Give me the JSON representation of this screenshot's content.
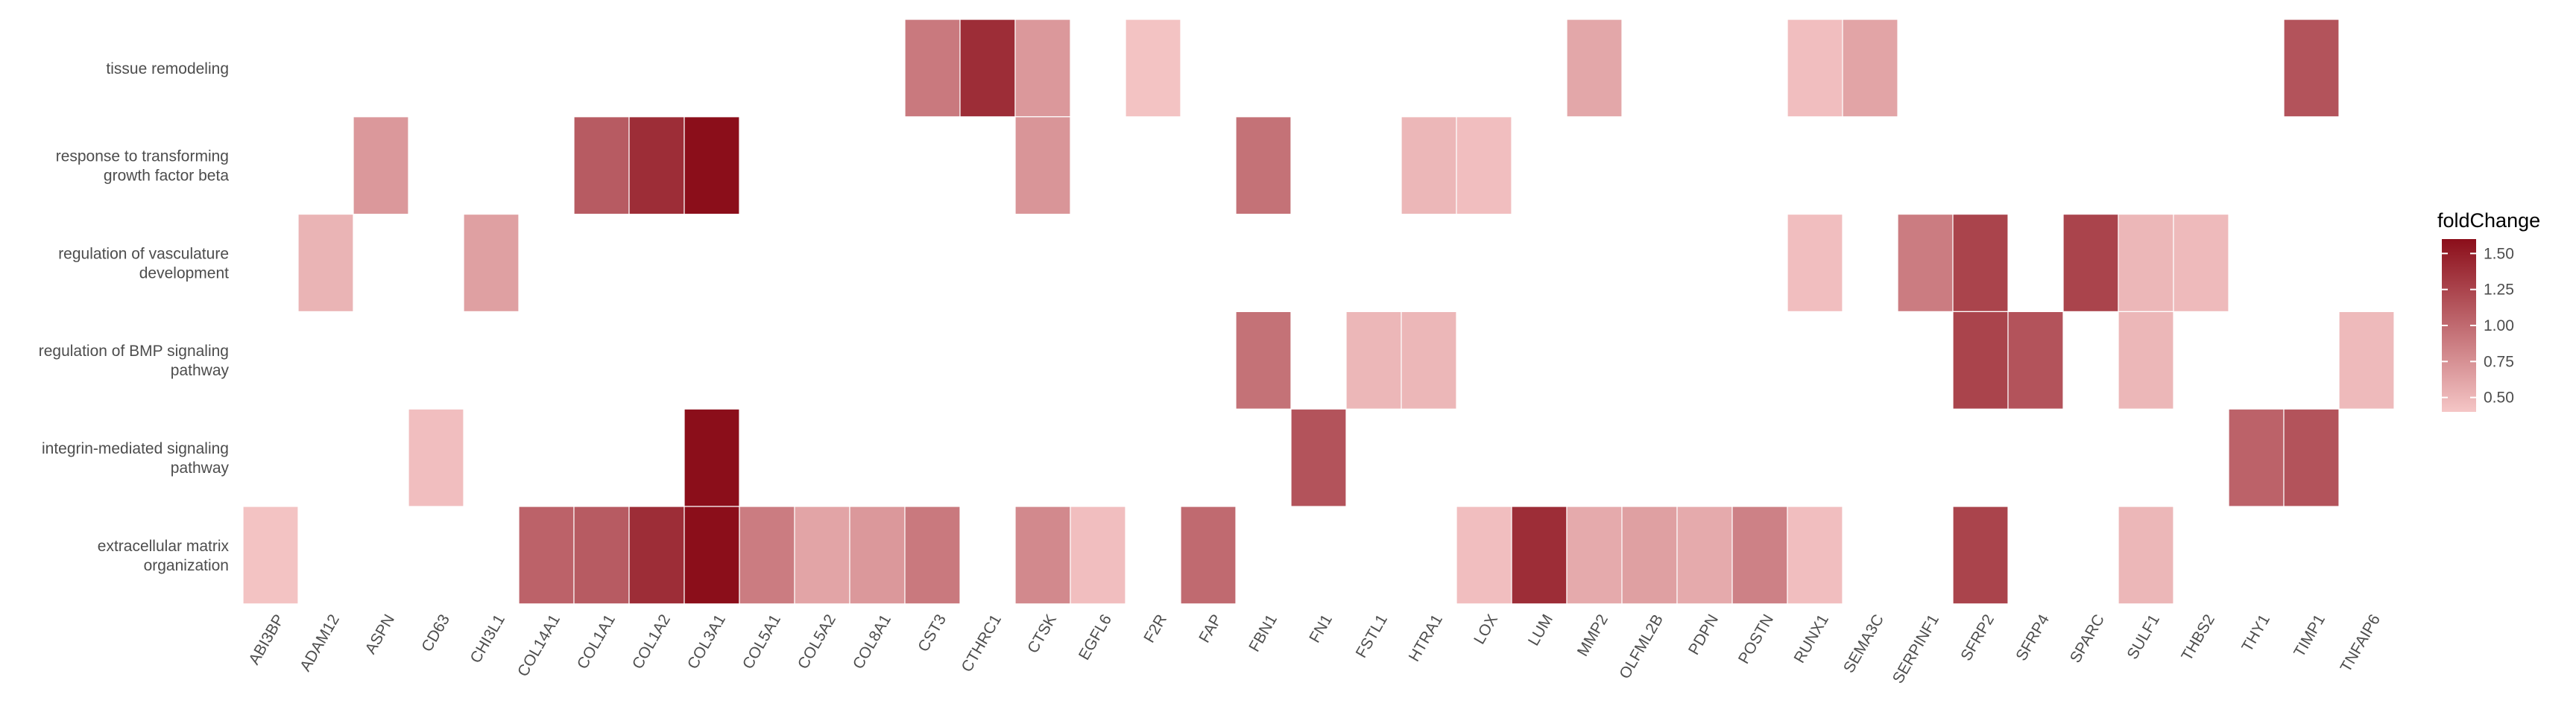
{
  "chart_data": {
    "type": "heatmap",
    "title": "",
    "xlabel": "",
    "ylabel": "",
    "x_categories": [
      "ABI3BP",
      "ADAM12",
      "ASPN",
      "CD63",
      "CHI3L1",
      "COL14A1",
      "COL1A1",
      "COL1A2",
      "COL3A1",
      "COL5A1",
      "COL5A2",
      "COL8A1",
      "CST3",
      "CTHRC1",
      "CTSK",
      "EGFL6",
      "F2R",
      "FAP",
      "FBN1",
      "FN1",
      "FSTL1",
      "HTRA1",
      "LOX",
      "LUM",
      "MMP2",
      "OLFML2B",
      "PDPN",
      "POSTN",
      "RUNX1",
      "SEMA3C",
      "SERPINF1",
      "SFRP2",
      "SFRP4",
      "SPARC",
      "SULF1",
      "THBS2",
      "THY1",
      "TIMP1",
      "TNFAIP6"
    ],
    "y_categories": [
      {
        "name": "tissue remodeling",
        "lines": [
          "tissue remodeling"
        ]
      },
      {
        "name": "response to transforming growth factor beta",
        "lines": [
          "response to transforming",
          "growth factor beta"
        ]
      },
      {
        "name": "regulation of vasculature development",
        "lines": [
          "regulation of vasculature",
          "development"
        ]
      },
      {
        "name": "regulation of BMP signaling pathway",
        "lines": [
          "regulation of BMP signaling",
          "pathway"
        ]
      },
      {
        "name": "integrin-mediated signaling pathway",
        "lines": [
          "integrin-mediated signaling",
          "pathway"
        ]
      },
      {
        "name": "extracellular matrix organization",
        "lines": [
          "extracellular matrix",
          "organization"
        ]
      }
    ],
    "cells": [
      {
        "y": "tissue remodeling",
        "x": "CST3",
        "value": 0.9
      },
      {
        "y": "tissue remodeling",
        "x": "CTHRC1",
        "value": 1.4
      },
      {
        "y": "tissue remodeling",
        "x": "CTSK",
        "value": 0.7
      },
      {
        "y": "tissue remodeling",
        "x": "F2R",
        "value": 0.42
      },
      {
        "y": "tissue remodeling",
        "x": "MMP2",
        "value": 0.6
      },
      {
        "y": "tissue remodeling",
        "x": "RUNX1",
        "value": 0.45
      },
      {
        "y": "tissue remodeling",
        "x": "SEMA3C",
        "value": 0.62
      },
      {
        "y": "tissue remodeling",
        "x": "TIMP1",
        "value": 1.15
      },
      {
        "y": "response to transforming growth factor beta",
        "x": "ASPN",
        "value": 0.7
      },
      {
        "y": "response to transforming growth factor beta",
        "x": "COL1A1",
        "value": 1.1
      },
      {
        "y": "response to transforming growth factor beta",
        "x": "COL1A2",
        "value": 1.4
      },
      {
        "y": "response to transforming growth factor beta",
        "x": "COL3A1",
        "value": 1.6
      },
      {
        "y": "response to transforming growth factor beta",
        "x": "CTSK",
        "value": 0.72
      },
      {
        "y": "response to transforming growth factor beta",
        "x": "FBN1",
        "value": 0.95
      },
      {
        "y": "response to transforming growth factor beta",
        "x": "HTRA1",
        "value": 0.5
      },
      {
        "y": "response to transforming growth factor beta",
        "x": "LOX",
        "value": 0.45
      },
      {
        "y": "regulation of vasculature development",
        "x": "ADAM12",
        "value": 0.52
      },
      {
        "y": "regulation of vasculature development",
        "x": "CHI3L1",
        "value": 0.65
      },
      {
        "y": "regulation of vasculature development",
        "x": "RUNX1",
        "value": 0.45
      },
      {
        "y": "regulation of vasculature development",
        "x": "SERPINF1",
        "value": 0.88
      },
      {
        "y": "regulation of vasculature development",
        "x": "SFRP2",
        "value": 1.25
      },
      {
        "y": "regulation of vasculature development",
        "x": "SPARC",
        "value": 1.25
      },
      {
        "y": "regulation of vasculature development",
        "x": "SULF1",
        "value": 0.5
      },
      {
        "y": "regulation of vasculature development",
        "x": "THBS2",
        "value": 0.48
      },
      {
        "y": "regulation of BMP signaling pathway",
        "x": "FBN1",
        "value": 0.95
      },
      {
        "y": "regulation of BMP signaling pathway",
        "x": "FSTL1",
        "value": 0.5
      },
      {
        "y": "regulation of BMP signaling pathway",
        "x": "HTRA1",
        "value": 0.5
      },
      {
        "y": "regulation of BMP signaling pathway",
        "x": "SFRP2",
        "value": 1.25
      },
      {
        "y": "regulation of BMP signaling pathway",
        "x": "SFRP4",
        "value": 1.15
      },
      {
        "y": "regulation of BMP signaling pathway",
        "x": "SULF1",
        "value": 0.5
      },
      {
        "y": "regulation of BMP signaling pathway",
        "x": "TNFAIP6",
        "value": 0.48
      },
      {
        "y": "integrin-mediated signaling pathway",
        "x": "CD63",
        "value": 0.45
      },
      {
        "y": "integrin-mediated signaling pathway",
        "x": "COL3A1",
        "value": 1.6
      },
      {
        "y": "integrin-mediated signaling pathway",
        "x": "FN1",
        "value": 1.15
      },
      {
        "y": "integrin-mediated signaling pathway",
        "x": "THY1",
        "value": 1.05
      },
      {
        "y": "integrin-mediated signaling pathway",
        "x": "TIMP1",
        "value": 1.15
      },
      {
        "y": "extracellular matrix organization",
        "x": "ABI3BP",
        "value": 0.42
      },
      {
        "y": "extracellular matrix organization",
        "x": "COL14A1",
        "value": 1.05
      },
      {
        "y": "extracellular matrix organization",
        "x": "COL1A1",
        "value": 1.1
      },
      {
        "y": "extracellular matrix organization",
        "x": "COL1A2",
        "value": 1.4
      },
      {
        "y": "extracellular matrix organization",
        "x": "COL3A1",
        "value": 1.6
      },
      {
        "y": "extracellular matrix organization",
        "x": "COL5A1",
        "value": 0.88
      },
      {
        "y": "extracellular matrix organization",
        "x": "COL5A2",
        "value": 0.62
      },
      {
        "y": "extracellular matrix organization",
        "x": "COL8A1",
        "value": 0.7
      },
      {
        "y": "extracellular matrix organization",
        "x": "CST3",
        "value": 0.9
      },
      {
        "y": "extracellular matrix organization",
        "x": "CTSK",
        "value": 0.8
      },
      {
        "y": "extracellular matrix organization",
        "x": "EGFL6",
        "value": 0.45
      },
      {
        "y": "extracellular matrix organization",
        "x": "FAP",
        "value": 1.0
      },
      {
        "y": "extracellular matrix organization",
        "x": "LOX",
        "value": 0.45
      },
      {
        "y": "extracellular matrix organization",
        "x": "LUM",
        "value": 1.4
      },
      {
        "y": "extracellular matrix organization",
        "x": "MMP2",
        "value": 0.58
      },
      {
        "y": "extracellular matrix organization",
        "x": "OLFML2B",
        "value": 0.65
      },
      {
        "y": "extracellular matrix organization",
        "x": "PDPN",
        "value": 0.58
      },
      {
        "y": "extracellular matrix organization",
        "x": "POSTN",
        "value": 0.85
      },
      {
        "y": "extracellular matrix organization",
        "x": "RUNX1",
        "value": 0.45
      },
      {
        "y": "extracellular matrix organization",
        "x": "SFRP2",
        "value": 1.25
      },
      {
        "y": "extracellular matrix organization",
        "x": "SULF1",
        "value": 0.5
      }
    ],
    "color_scale": {
      "title": "foldChange",
      "low_color": "#f5c6c6",
      "high_color": "#8b0e1a",
      "min": 0.4,
      "max": 1.6,
      "ticks": [
        "1.50",
        "1.25",
        "1.00",
        "0.75",
        "0.50"
      ]
    },
    "grid": false,
    "legend_position": "right"
  }
}
